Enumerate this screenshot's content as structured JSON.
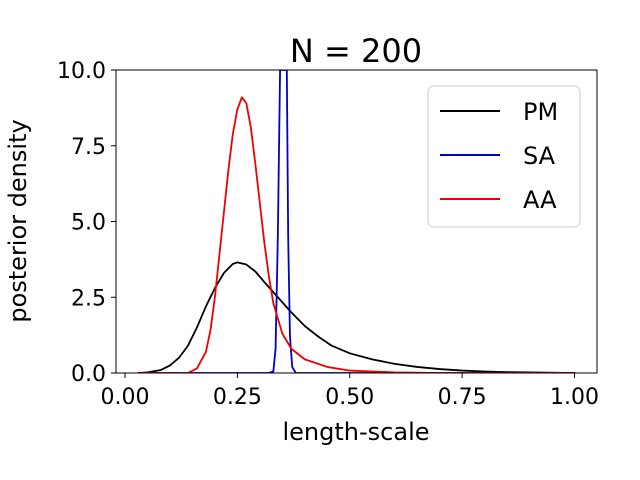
{
  "chart_data": {
    "type": "line",
    "title": "N = 200",
    "xlabel": "length-scale",
    "ylabel": "posterior density",
    "xlim": [
      -0.02,
      1.05
    ],
    "ylim": [
      0,
      10
    ],
    "xticks": [
      {
        "value": 0.0,
        "label": "0.00"
      },
      {
        "value": 0.25,
        "label": "0.25"
      },
      {
        "value": 0.5,
        "label": "0.50"
      },
      {
        "value": 0.75,
        "label": "0.75"
      },
      {
        "value": 1.0,
        "label": "1.00"
      }
    ],
    "yticks": [
      {
        "value": 0.0,
        "label": "0.0"
      },
      {
        "value": 2.5,
        "label": "2.5"
      },
      {
        "value": 5.0,
        "label": "5.0"
      },
      {
        "value": 7.5,
        "label": "7.5"
      },
      {
        "value": 10.0,
        "label": "10.0"
      }
    ],
    "grid": false,
    "legend": "top-right",
    "series": [
      {
        "name": "PM",
        "color": "#000000",
        "points": [
          [
            0.03,
            0.0
          ],
          [
            0.05,
            0.02
          ],
          [
            0.08,
            0.1
          ],
          [
            0.1,
            0.25
          ],
          [
            0.12,
            0.5
          ],
          [
            0.14,
            0.9
          ],
          [
            0.16,
            1.5
          ],
          [
            0.18,
            2.2
          ],
          [
            0.2,
            2.8
          ],
          [
            0.22,
            3.3
          ],
          [
            0.24,
            3.6
          ],
          [
            0.25,
            3.65
          ],
          [
            0.27,
            3.58
          ],
          [
            0.29,
            3.35
          ],
          [
            0.31,
            3.0
          ],
          [
            0.34,
            2.5
          ],
          [
            0.37,
            2.0
          ],
          [
            0.4,
            1.55
          ],
          [
            0.43,
            1.2
          ],
          [
            0.46,
            0.9
          ],
          [
            0.5,
            0.65
          ],
          [
            0.55,
            0.45
          ],
          [
            0.6,
            0.3
          ],
          [
            0.65,
            0.2
          ],
          [
            0.7,
            0.13
          ],
          [
            0.75,
            0.08
          ],
          [
            0.8,
            0.05
          ],
          [
            0.85,
            0.03
          ],
          [
            0.9,
            0.02
          ],
          [
            1.0,
            0.0
          ]
        ]
      },
      {
        "name": "SA",
        "color": "#0000cc",
        "points": [
          [
            0.03,
            0.0
          ],
          [
            0.32,
            0.0
          ],
          [
            0.33,
            0.05
          ],
          [
            0.335,
            0.8
          ],
          [
            0.34,
            4.5
          ],
          [
            0.345,
            10.0
          ],
          [
            0.36,
            10.0
          ],
          [
            0.363,
            4.5
          ],
          [
            0.367,
            1.2
          ],
          [
            0.372,
            0.2
          ],
          [
            0.38,
            0.0
          ],
          [
            1.0,
            0.0
          ]
        ]
      },
      {
        "name": "AA",
        "color": "#ee0000",
        "points": [
          [
            0.03,
            0.0
          ],
          [
            0.14,
            0.0
          ],
          [
            0.16,
            0.15
          ],
          [
            0.18,
            0.7
          ],
          [
            0.19,
            1.4
          ],
          [
            0.2,
            2.5
          ],
          [
            0.21,
            3.9
          ],
          [
            0.22,
            5.3
          ],
          [
            0.23,
            6.7
          ],
          [
            0.24,
            7.9
          ],
          [
            0.25,
            8.7
          ],
          [
            0.26,
            9.1
          ],
          [
            0.27,
            8.9
          ],
          [
            0.28,
            8.1
          ],
          [
            0.29,
            6.9
          ],
          [
            0.3,
            5.6
          ],
          [
            0.31,
            4.3
          ],
          [
            0.32,
            3.2
          ],
          [
            0.33,
            2.3
          ],
          [
            0.35,
            1.3
          ],
          [
            0.37,
            0.8
          ],
          [
            0.4,
            0.45
          ],
          [
            0.45,
            0.2
          ],
          [
            0.5,
            0.08
          ],
          [
            0.6,
            0.02
          ],
          [
            0.7,
            0.0
          ],
          [
            1.0,
            0.0
          ]
        ]
      }
    ]
  }
}
